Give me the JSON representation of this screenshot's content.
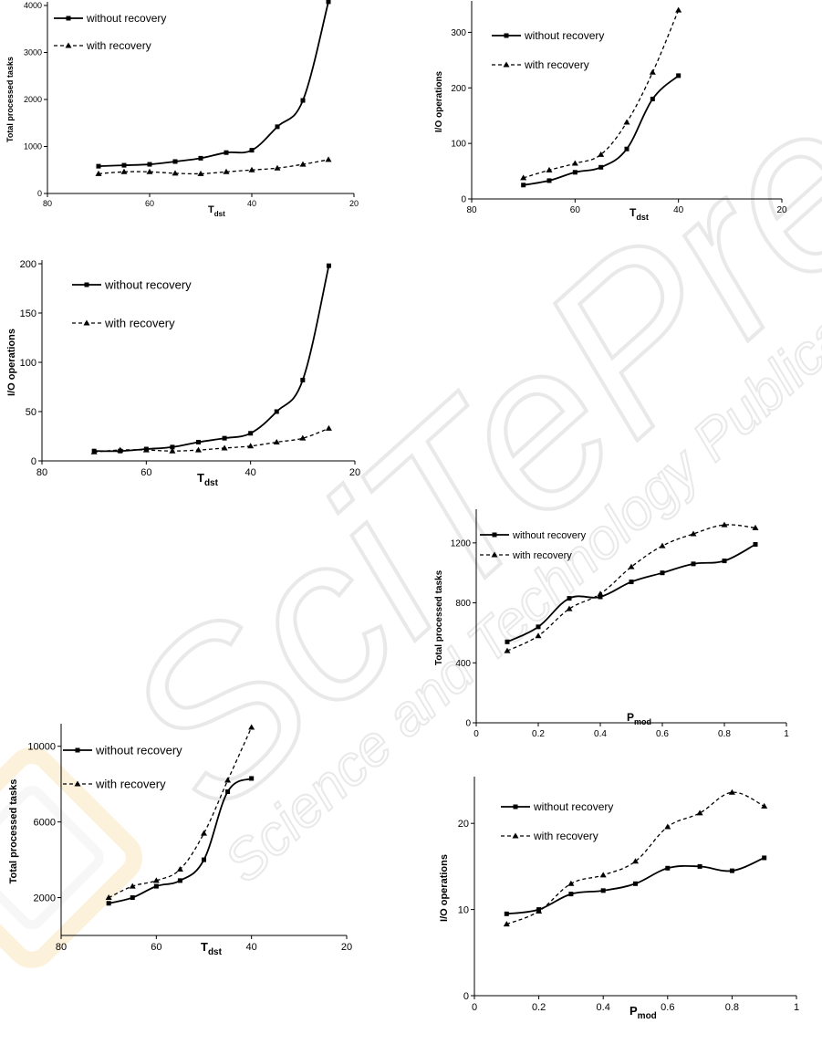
{
  "watermark": {
    "brand": "SciTePress",
    "tagline": "Science and Technology Publications"
  },
  "chart_data": [
    {
      "type": "line",
      "xlabel_main": "T",
      "xlabel_sub": "dst",
      "ylabel": "Total processed tasks",
      "xlim": [
        80,
        20
      ],
      "ylim": [
        0,
        4000
      ],
      "xticks": [
        "80",
        "60",
        "40",
        "20"
      ],
      "yticks": [
        "0",
        "1000",
        "2000",
        "3000",
        "4000"
      ],
      "x": [
        70,
        65,
        60,
        55,
        50,
        45,
        40,
        35,
        30,
        25
      ],
      "series": [
        {
          "name": "without recovery",
          "values": [
            580,
            600,
            620,
            680,
            750,
            870,
            920,
            1420,
            1980,
            4080
          ]
        },
        {
          "name": "with recovery",
          "values": [
            420,
            460,
            460,
            430,
            420,
            460,
            500,
            540,
            620,
            720
          ]
        }
      ]
    },
    {
      "type": "line",
      "xlabel_main": "T",
      "xlabel_sub": "dst",
      "ylabel": "I/O operations",
      "xlim": [
        80,
        20
      ],
      "ylim": [
        0,
        350
      ],
      "xticks": [
        "80",
        "60",
        "40",
        "20"
      ],
      "yticks": [
        "0",
        "100",
        "200",
        "300"
      ],
      "x": [
        70,
        65,
        60,
        55,
        50,
        45,
        40
      ],
      "series": [
        {
          "name": "without recovery",
          "values": [
            25,
            33,
            48,
            57,
            90,
            180,
            222
          ]
        },
        {
          "name": "with recovery",
          "values": [
            38,
            52,
            64,
            80,
            138,
            228,
            340
          ]
        }
      ]
    },
    {
      "type": "line",
      "xlabel_main": "T",
      "xlabel_sub": "dst",
      "ylabel": "I/O operations",
      "xlim": [
        80,
        20
      ],
      "ylim": [
        0,
        200
      ],
      "xticks": [
        "80",
        "60",
        "40",
        "20"
      ],
      "yticks": [
        "0",
        "50",
        "100",
        "150",
        "200"
      ],
      "x": [
        70,
        65,
        60,
        55,
        50,
        45,
        40,
        35,
        30,
        25
      ],
      "series": [
        {
          "name": "without recovery",
          "values": [
            10,
            10,
            12,
            14,
            19,
            23,
            28,
            50,
            82,
            198
          ]
        },
        {
          "name": "with recovery",
          "values": [
            9,
            11,
            11,
            10,
            11,
            13,
            15,
            19,
            23,
            33
          ]
        }
      ]
    },
    {
      "type": "line",
      "xlabel_main": "P",
      "xlabel_sub": "mod",
      "ylabel": "Total processed tasks",
      "xlim": [
        0,
        1
      ],
      "ylim": [
        0,
        1400
      ],
      "xticks": [
        "0",
        "0.2",
        "0.4",
        "0.6",
        "0.8",
        "1"
      ],
      "yticks": [
        "0",
        "400",
        "800",
        "1200"
      ],
      "x": [
        0.1,
        0.2,
        0.3,
        0.4,
        0.5,
        0.6,
        0.7,
        0.8,
        0.9
      ],
      "series": [
        {
          "name": "without recovery",
          "values": [
            540,
            640,
            830,
            840,
            940,
            1000,
            1060,
            1080,
            1190
          ]
        },
        {
          "name": "with recovery",
          "values": [
            480,
            580,
            760,
            860,
            1040,
            1180,
            1260,
            1320,
            1300
          ]
        }
      ]
    },
    {
      "type": "line",
      "xlabel_main": "T",
      "xlabel_sub": "dst",
      "ylabel": "Total processed tasks",
      "xlim": [
        80,
        20
      ],
      "ylim": [
        0,
        11000
      ],
      "xticks": [
        "80",
        "60",
        "40",
        "20"
      ],
      "yticks": [
        "2000",
        "6000",
        "10000"
      ],
      "x": [
        70,
        65,
        60,
        55,
        50,
        45,
        40
      ],
      "series": [
        {
          "name": "without recovery",
          "values": [
            1700,
            2000,
            2600,
            2900,
            4000,
            7600,
            8300
          ]
        },
        {
          "name": "with recovery",
          "values": [
            2000,
            2600,
            2900,
            3500,
            5400,
            8200,
            11000
          ]
        }
      ]
    },
    {
      "type": "line",
      "xlabel_main": "P",
      "xlabel_sub": "mod",
      "ylabel": "I/O operations",
      "xlim": [
        0,
        1
      ],
      "ylim": [
        0,
        25
      ],
      "xticks": [
        "0",
        "0.2",
        "0.4",
        "0.6",
        "0.8",
        "1"
      ],
      "yticks": [
        "0",
        "10",
        "20"
      ],
      "x": [
        0.1,
        0.2,
        0.3,
        0.4,
        0.5,
        0.6,
        0.7,
        0.8,
        0.9
      ],
      "series": [
        {
          "name": "without recovery",
          "values": [
            9.5,
            10,
            11.8,
            12.2,
            13,
            14.8,
            15,
            14.5,
            16
          ]
        },
        {
          "name": "with recovery",
          "values": [
            8.3,
            9.8,
            13,
            14,
            15.6,
            19.6,
            21.2,
            23.6,
            22
          ]
        }
      ]
    }
  ]
}
